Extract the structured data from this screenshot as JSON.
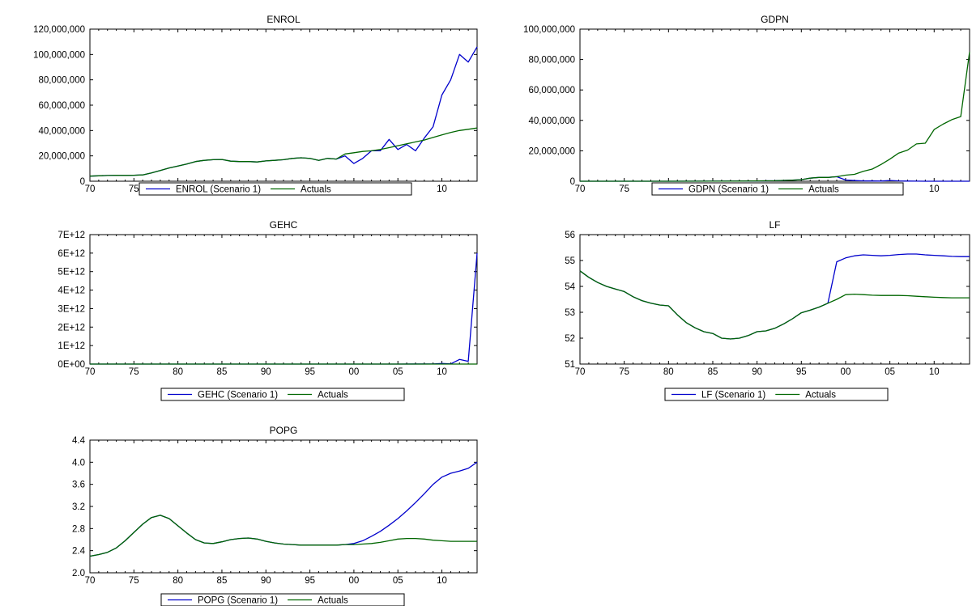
{
  "chart_data": [
    {
      "type": "line",
      "title": "ENROL",
      "xlim": [
        1970,
        2014
      ],
      "ylim": [
        0,
        120000000
      ],
      "x_ticks": [
        1970,
        1975,
        1980,
        1985,
        1990,
        1995,
        2000,
        2005,
        2010
      ],
      "x_tick_labels": [
        "70",
        "75",
        "80",
        "85",
        "90",
        "95",
        "00",
        "05",
        "10"
      ],
      "y_ticks": [
        0,
        20000000,
        40000000,
        60000000,
        80000000,
        100000000,
        120000000
      ],
      "y_tick_labels": [
        "0",
        "20,000,000",
        "40,000,000",
        "60,000,000",
        "80,000,000",
        "100,000,000",
        "120,000,000"
      ],
      "legend": "bottom-center",
      "series": [
        {
          "name": "ENROL (Scenario 1)",
          "color": "#0000cc",
          "x": [
            1970,
            1971,
            1972,
            1973,
            1974,
            1975,
            1976,
            1977,
            1978,
            1979,
            1980,
            1981,
            1982,
            1983,
            1984,
            1985,
            1986,
            1987,
            1988,
            1989,
            1990,
            1991,
            1992,
            1993,
            1994,
            1995,
            1996,
            1997,
            1998,
            1999,
            2000,
            2001,
            2002,
            2003,
            2004,
            2005,
            2006,
            2007,
            2008,
            2009,
            2010,
            2011,
            2012,
            2013,
            2014
          ],
          "values": [
            4000000,
            4300000,
            4500000,
            4700000,
            4600000,
            4700000,
            5000000,
            6500000,
            8500000,
            10500000,
            12000000,
            13500000,
            15500000,
            16500000,
            17000000,
            17200000,
            15800000,
            15500000,
            15500000,
            15200000,
            16000000,
            16500000,
            17000000,
            18000000,
            18500000,
            18000000,
            16500000,
            18000000,
            17500000,
            20000000,
            14000000,
            18000000,
            24000000,
            24000000,
            33000000,
            25000000,
            29000000,
            24000000,
            34000000,
            43000000,
            68000000,
            80000000,
            100000000,
            94000000,
            106000000
          ]
        },
        {
          "name": "Actuals",
          "color": "#006600",
          "x": [
            1970,
            1971,
            1972,
            1973,
            1974,
            1975,
            1976,
            1977,
            1978,
            1979,
            1980,
            1981,
            1982,
            1983,
            1984,
            1985,
            1986,
            1987,
            1988,
            1989,
            1990,
            1991,
            1992,
            1993,
            1994,
            1995,
            1996,
            1997,
            1998,
            1999,
            2000,
            2001,
            2002,
            2003,
            2004,
            2005,
            2006,
            2007,
            2008,
            2009,
            2010,
            2011,
            2012,
            2013,
            2014
          ],
          "values": [
            4000000,
            4300000,
            4500000,
            4700000,
            4600000,
            4700000,
            5000000,
            6500000,
            8500000,
            10500000,
            12000000,
            13500000,
            15500000,
            16500000,
            17000000,
            17200000,
            15800000,
            15500000,
            15500000,
            15200000,
            16000000,
            16500000,
            17000000,
            18000000,
            18500000,
            18000000,
            16500000,
            18000000,
            17500000,
            21500000,
            22500000,
            23500000,
            24000000,
            25000000,
            26500000,
            28000000,
            29500000,
            31000000,
            32500000,
            34500000,
            36500000,
            38500000,
            40000000,
            41000000,
            42000000
          ]
        }
      ]
    },
    {
      "type": "line",
      "title": "GDPN",
      "xlim": [
        1970,
        2014
      ],
      "ylim": [
        0,
        100000000
      ],
      "x_ticks": [
        1970,
        1975,
        1980,
        1985,
        1990,
        1995,
        2000,
        2005,
        2010
      ],
      "x_tick_labels": [
        "70",
        "75",
        "80",
        "85",
        "90",
        "95",
        "00",
        "05",
        "10"
      ],
      "y_ticks": [
        0,
        20000000,
        40000000,
        60000000,
        80000000,
        100000000
      ],
      "y_tick_labels": [
        "0",
        "20,000,000",
        "40,000,000",
        "60,000,000",
        "80,000,000",
        "100,000,000"
      ],
      "legend": "bottom-center",
      "series": [
        {
          "name": "GDPN (Scenario 1)",
          "color": "#0000cc",
          "x": [
            1970,
            1975,
            1980,
            1985,
            1988,
            1990,
            1992,
            1994,
            1995,
            1996,
            1997,
            1998,
            1999,
            2000,
            2001,
            2002,
            2003,
            2004,
            2005,
            2006,
            2007,
            2008,
            2009,
            2010,
            2011,
            2012,
            2013,
            2014
          ],
          "values": [
            0,
            0,
            0,
            50000,
            100000,
            200000,
            300000,
            700000,
            1000000,
            2000000,
            2500000,
            2500000,
            3000000,
            800000,
            400000,
            200000,
            150000,
            100000,
            500000,
            200000,
            100000,
            50000,
            20000,
            10000,
            5000,
            2000,
            1000,
            500
          ]
        },
        {
          "name": "Actuals",
          "color": "#006600",
          "x": [
            1970,
            1975,
            1980,
            1985,
            1988,
            1990,
            1992,
            1994,
            1995,
            1996,
            1997,
            1998,
            1999,
            2000,
            2001,
            2002,
            2003,
            2004,
            2005,
            2006,
            2007,
            2008,
            2009,
            2010,
            2011,
            2012,
            2013,
            2014
          ],
          "values": [
            0,
            0,
            0,
            50000,
            100000,
            200000,
            300000,
            700000,
            1000000,
            2000000,
            2500000,
            2500000,
            3000000,
            4000000,
            4500000,
            6500000,
            8000000,
            11000000,
            14500000,
            18500000,
            20500000,
            24500000,
            25000000,
            34000000,
            37500000,
            40500000,
            42500000,
            85000000
          ]
        }
      ]
    },
    {
      "type": "line",
      "title": "GEHC",
      "xlim": [
        1970,
        2014
      ],
      "ylim": [
        0,
        7000000000000
      ],
      "x_ticks": [
        1970,
        1975,
        1980,
        1985,
        1990,
        1995,
        2000,
        2005,
        2010
      ],
      "x_tick_labels": [
        "70",
        "75",
        "80",
        "85",
        "90",
        "95",
        "00",
        "05",
        "10"
      ],
      "y_ticks": [
        0,
        1000000000000,
        2000000000000,
        3000000000000,
        4000000000000,
        5000000000000,
        6000000000000,
        7000000000000
      ],
      "y_tick_labels": [
        "0E+00",
        "1E+12",
        "2E+12",
        "3E+12",
        "4E+12",
        "5E+12",
        "6E+12",
        "7E+12"
      ],
      "legend": "bottom-center",
      "series": [
        {
          "name": "GEHC (Scenario 1)",
          "color": "#0000cc",
          "x": [
            1970,
            1980,
            1990,
            2000,
            2005,
            2009,
            2010,
            2011,
            2012,
            2013,
            2014
          ],
          "values": [
            0,
            0,
            0,
            0,
            0,
            5000000000,
            30000000000,
            10000000000,
            250000000000,
            150000000000,
            6000000000000
          ]
        },
        {
          "name": "Actuals",
          "color": "#006600",
          "x": [
            1970,
            1980,
            1990,
            2000,
            2005,
            2010,
            2014
          ],
          "values": [
            0,
            0,
            0,
            0,
            0,
            0,
            0
          ]
        }
      ]
    },
    {
      "type": "line",
      "title": "LF",
      "xlim": [
        1970,
        2014
      ],
      "ylim": [
        51,
        56
      ],
      "x_ticks": [
        1970,
        1975,
        1980,
        1985,
        1990,
        1995,
        2000,
        2005,
        2010
      ],
      "x_tick_labels": [
        "70",
        "75",
        "80",
        "85",
        "90",
        "95",
        "00",
        "05",
        "10"
      ],
      "y_ticks": [
        51,
        52,
        53,
        54,
        55,
        56
      ],
      "y_tick_labels": [
        "51",
        "52",
        "53",
        "54",
        "55",
        "56"
      ],
      "legend": "bottom-center",
      "series": [
        {
          "name": "LF (Scenario 1)",
          "color": "#0000cc",
          "x": [
            1970,
            1971,
            1972,
            1973,
            1974,
            1975,
            1976,
            1977,
            1978,
            1979,
            1980,
            1981,
            1982,
            1983,
            1984,
            1985,
            1986,
            1987,
            1988,
            1989,
            1990,
            1991,
            1992,
            1993,
            1994,
            1995,
            1996,
            1997,
            1998,
            1999,
            2000,
            2001,
            2002,
            2003,
            2004,
            2005,
            2006,
            2007,
            2008,
            2009,
            2010,
            2011,
            2012,
            2013,
            2014
          ],
          "values": [
            54.6,
            54.35,
            54.15,
            54.0,
            53.9,
            53.8,
            53.6,
            53.45,
            53.35,
            53.28,
            53.25,
            52.9,
            52.6,
            52.4,
            52.25,
            52.18,
            52.0,
            51.97,
            52.0,
            52.1,
            52.25,
            52.28,
            52.38,
            52.55,
            52.75,
            52.98,
            53.08,
            53.2,
            53.35,
            54.95,
            55.1,
            55.18,
            55.22,
            55.2,
            55.18,
            55.2,
            55.23,
            55.25,
            55.25,
            55.22,
            55.2,
            55.18,
            55.16,
            55.15,
            55.15
          ]
        },
        {
          "name": "Actuals",
          "color": "#006600",
          "x": [
            1970,
            1971,
            1972,
            1973,
            1974,
            1975,
            1976,
            1977,
            1978,
            1979,
            1980,
            1981,
            1982,
            1983,
            1984,
            1985,
            1986,
            1987,
            1988,
            1989,
            1990,
            1991,
            1992,
            1993,
            1994,
            1995,
            1996,
            1997,
            1998,
            1999,
            2000,
            2001,
            2002,
            2003,
            2004,
            2005,
            2006,
            2007,
            2008,
            2009,
            2010,
            2011,
            2012,
            2013,
            2014
          ],
          "values": [
            54.6,
            54.35,
            54.15,
            54.0,
            53.9,
            53.8,
            53.6,
            53.45,
            53.35,
            53.28,
            53.25,
            52.9,
            52.6,
            52.4,
            52.25,
            52.18,
            52.0,
            51.97,
            52.0,
            52.1,
            52.25,
            52.28,
            52.38,
            52.55,
            52.75,
            52.98,
            53.08,
            53.2,
            53.35,
            53.5,
            53.68,
            53.7,
            53.68,
            53.66,
            53.65,
            53.65,
            53.65,
            53.64,
            53.62,
            53.6,
            53.58,
            53.57,
            53.56,
            53.56,
            53.56
          ]
        }
      ]
    },
    {
      "type": "line",
      "title": "POPG",
      "xlim": [
        1970,
        2014
      ],
      "ylim": [
        2.0,
        4.4
      ],
      "x_ticks": [
        1970,
        1975,
        1980,
        1985,
        1990,
        1995,
        2000,
        2005,
        2010
      ],
      "x_tick_labels": [
        "70",
        "75",
        "80",
        "85",
        "90",
        "95",
        "00",
        "05",
        "10"
      ],
      "y_ticks": [
        2.0,
        2.4,
        2.8,
        3.2,
        3.6,
        4.0,
        4.4
      ],
      "y_tick_labels": [
        "2.0",
        "2.4",
        "2.8",
        "3.2",
        "3.6",
        "4.0",
        "4.4"
      ],
      "legend": "bottom-center",
      "series": [
        {
          "name": "POPG (Scenario 1)",
          "color": "#0000cc",
          "x": [
            1970,
            1971,
            1972,
            1973,
            1974,
            1975,
            1976,
            1977,
            1978,
            1979,
            1980,
            1981,
            1982,
            1983,
            1984,
            1985,
            1986,
            1987,
            1988,
            1989,
            1990,
            1991,
            1992,
            1993,
            1994,
            1995,
            1996,
            1997,
            1998,
            1999,
            2000,
            2001,
            2002,
            2003,
            2004,
            2005,
            2006,
            2007,
            2008,
            2009,
            2010,
            2011,
            2012,
            2013,
            2014
          ],
          "values": [
            2.3,
            2.33,
            2.37,
            2.45,
            2.58,
            2.73,
            2.88,
            3.0,
            3.04,
            2.98,
            2.85,
            2.72,
            2.6,
            2.54,
            2.53,
            2.56,
            2.6,
            2.62,
            2.63,
            2.61,
            2.57,
            2.54,
            2.52,
            2.51,
            2.5,
            2.5,
            2.5,
            2.5,
            2.5,
            2.51,
            2.53,
            2.58,
            2.66,
            2.75,
            2.86,
            2.98,
            3.12,
            3.27,
            3.43,
            3.6,
            3.73,
            3.8,
            3.84,
            3.89,
            4.0
          ]
        },
        {
          "name": "Actuals",
          "color": "#006600",
          "x": [
            1970,
            1971,
            1972,
            1973,
            1974,
            1975,
            1976,
            1977,
            1978,
            1979,
            1980,
            1981,
            1982,
            1983,
            1984,
            1985,
            1986,
            1987,
            1988,
            1989,
            1990,
            1991,
            1992,
            1993,
            1994,
            1995,
            1996,
            1997,
            1998,
            1999,
            2000,
            2001,
            2002,
            2003,
            2004,
            2005,
            2006,
            2007,
            2008,
            2009,
            2010,
            2011,
            2012,
            2013,
            2014
          ],
          "values": [
            2.3,
            2.33,
            2.37,
            2.45,
            2.58,
            2.73,
            2.88,
            3.0,
            3.04,
            2.98,
            2.85,
            2.72,
            2.6,
            2.54,
            2.53,
            2.56,
            2.6,
            2.62,
            2.63,
            2.61,
            2.57,
            2.54,
            2.52,
            2.51,
            2.5,
            2.5,
            2.5,
            2.5,
            2.5,
            2.51,
            2.51,
            2.52,
            2.53,
            2.55,
            2.58,
            2.61,
            2.62,
            2.62,
            2.61,
            2.59,
            2.58,
            2.57,
            2.57,
            2.57,
            2.57
          ]
        }
      ]
    }
  ]
}
